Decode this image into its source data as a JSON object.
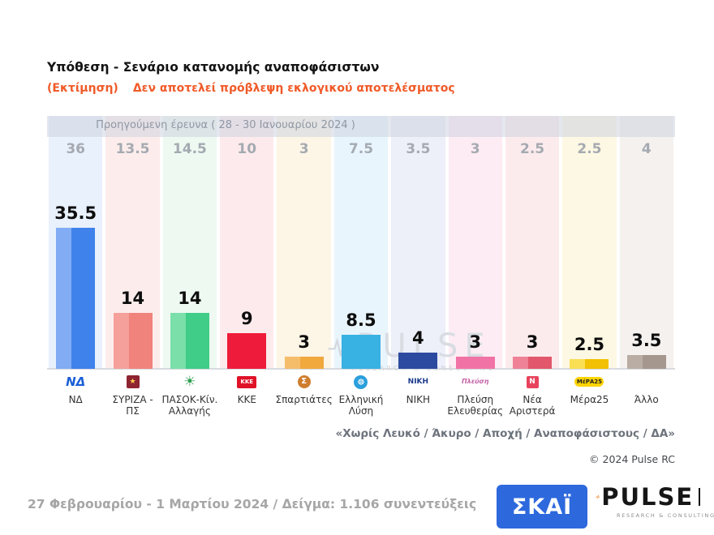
{
  "header": {
    "title": "Υπόθεση - Σενάριο κατανομής αναποφάσιστων",
    "estimate_label": "(Εκτίμηση)",
    "disclaimer": "Δεν αποτελεί πρόβλεψη εκλογικού αποτελέσματος"
  },
  "chart_data": {
    "type": "bar",
    "title": "Υπόθεση - Σενάριο κατανομής αναποφάσιστων (Εκτίμηση)",
    "previous_survey_label": "Προηγούμενη έρευνα ( 28 - 30 Ιανουαρίου 2024 )",
    "categories": [
      "ΝΔ",
      "ΣΥΡΙΖΑ - ΠΣ",
      "ΠΑΣΟΚ-Κίν. Αλλαγής",
      "ΚΚΕ",
      "Σπαρτιάτες",
      "Ελληνική Λύση",
      "ΝΙΚΗ",
      "Πλεύση Ελευθερίας",
      "Νέα Αριστερά",
      "Μέρα25",
      "Άλλο"
    ],
    "series": [
      {
        "name": "Προηγούμενη έρευνα ( 28 - 30 Ιανουαρίου 2024 )",
        "values": [
          36,
          13.5,
          14.5,
          10,
          3,
          7.5,
          3.5,
          3,
          2.5,
          2.5,
          4
        ]
      },
      {
        "name": "Εκτίμηση - Σενάριο κατανομής αναποφάσιστων",
        "values": [
          35.5,
          14,
          14,
          9,
          3,
          8.5,
          4,
          3,
          3,
          2.5,
          3.5
        ]
      }
    ],
    "ylim": [
      0,
      40
    ],
    "grid": false,
    "legend": "none"
  },
  "parties": [
    {
      "slug": "nd",
      "tint": "#e8f1fc",
      "bar": "#3f82ec",
      "bar_light": "#82acf4",
      "logo": {
        "shape": "text",
        "text": "ΝΔ",
        "fg": "#1a5ed6",
        "size": 15,
        "italic": true
      }
    },
    {
      "slug": "syriza-ps",
      "tint": "#fcedec",
      "bar": "#f0837c",
      "bar_light": "#f5a09a",
      "logo": {
        "shape": "box",
        "text": "★",
        "fg": "#ffd04d",
        "bg": "#8e2430",
        "size": 9,
        "w": 16,
        "h": 16
      }
    },
    {
      "slug": "pasok",
      "tint": "#eef9f2",
      "bar": "#3fcd87",
      "bar_light": "#7adfa9",
      "logo": {
        "shape": "text",
        "text": "☀",
        "fg": "#2f9e4f",
        "size": 17
      }
    },
    {
      "slug": "kke",
      "tint": "#fdeaed",
      "bar": "#ee1c3a",
      "bar_light": "",
      "logo": {
        "shape": "box",
        "text": "ΚΚΕ",
        "fg": "#ffffff",
        "bg": "#e01227",
        "size": 7,
        "w": 24,
        "h": 15
      }
    },
    {
      "slug": "spartiates",
      "tint": "#fdf5e6",
      "bar": "#f1a83c",
      "bar_light": "#f5bd6a",
      "logo": {
        "shape": "circle",
        "text": "Σ",
        "fg": "#ffffff",
        "bg": "#cf7d2e",
        "size": 10,
        "w": 16,
        "h": 16
      }
    },
    {
      "slug": "elliniki-lysi",
      "tint": "#e9f5fc",
      "bar": "#38b1e3",
      "bar_light": "",
      "logo": {
        "shape": "circle",
        "text": "☸",
        "fg": "#ffffff",
        "bg": "#2a9fdc",
        "size": 11,
        "w": 17,
        "h": 17
      }
    },
    {
      "slug": "niki",
      "tint": "#edeff9",
      "bar": "#2c4aa0",
      "bar_light": "",
      "logo": {
        "shape": "text",
        "text": "ΝΙΚΗ",
        "fg": "#1c3a8c",
        "size": 9
      }
    },
    {
      "slug": "plefsi-eleftherias",
      "tint": "#fdecf3",
      "bar": "#f172a5",
      "bar_light": "",
      "logo": {
        "shape": "text",
        "text": "Πλεύση",
        "fg": "#c560a8",
        "size": 8,
        "italic": true
      }
    },
    {
      "slug": "nea-aristera",
      "tint": "#fcebed",
      "bar": "#e2576b",
      "bar_light": "#ef8296",
      "logo": {
        "shape": "box",
        "text": "Ν",
        "fg": "#ffffff",
        "bg": "#e8435c",
        "size": 9,
        "w": 15,
        "h": 15
      }
    },
    {
      "slug": "mera25",
      "tint": "#fdf8e3",
      "bar": "#f2c105",
      "bar_light": "#fadf55",
      "logo": {
        "shape": "pill",
        "text": "ΜέΡΑ25",
        "fg": "#232323",
        "bg": "#ffd400",
        "size": 7,
        "w": 36,
        "h": 12
      }
    },
    {
      "slug": "allo",
      "tint": "#f4f1ef",
      "bar": "#a5978d",
      "bar_light": "#b9ada4",
      "logo": {
        "shape": "none",
        "text": ""
      }
    }
  ],
  "watermark": {
    "text": "PULSE",
    "subtext": "RESEARCH & CONSULTING"
  },
  "footnote": {
    "exclusions": "«Χωρίς Λευκό / Άκυρο / Αποχή / Αναποφάσιστους / ΔΑ»",
    "copyright": "© 2024 Pulse RC",
    "fieldwork": "27 Φεβρουαρίου - 1 Μαρτίου 2024  /  Δείγμα:  1.106 συνεντεύξεις"
  },
  "logos": {
    "skai": "ΣΚΑΪ",
    "pulse": "PULSE",
    "pulse_sub": "RESEARCH & CONSULTING"
  },
  "colors": {
    "accent_orange": "#f05a28",
    "skai_blue": "#2d68dd",
    "prev_value_gray": "#a5aab1",
    "band_gray": "#cdd4e0"
  }
}
